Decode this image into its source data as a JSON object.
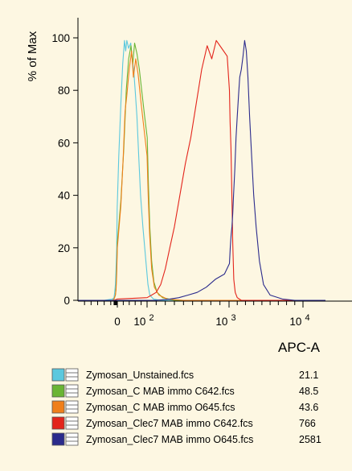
{
  "chart_data": {
    "type": "line",
    "ylabel": "% of Max",
    "xlabel": "APC-A",
    "ylim": [
      0,
      105
    ],
    "y_ticks": [
      0,
      20,
      40,
      60,
      80,
      100
    ],
    "x_ticks": [
      {
        "label": "0",
        "exp": ""
      },
      {
        "label": "10",
        "exp": "2"
      },
      {
        "label": "10",
        "exp": "3"
      },
      {
        "label": "10",
        "exp": "4"
      }
    ],
    "x_ticks_values": [
      0,
      100,
      1000,
      10000
    ],
    "x_scale": "logicle (biexponential)",
    "grid": false,
    "legend_position": "bottom",
    "series": [
      {
        "name": "Zymosan_Unstained.fcs",
        "median": "21.1",
        "color": "#5bc8de",
        "points": [
          [
            -1200,
            0
          ],
          [
            -400,
            0
          ],
          [
            -150,
            0.5
          ],
          [
            -100,
            1
          ],
          [
            -80,
            3
          ],
          [
            -60,
            6
          ],
          [
            -40,
            12
          ],
          [
            -20,
            20
          ],
          [
            -5,
            35
          ],
          [
            5,
            55
          ],
          [
            12,
            75
          ],
          [
            18,
            90
          ],
          [
            24,
            99
          ],
          [
            28,
            95
          ],
          [
            32,
            99
          ],
          [
            38,
            96
          ],
          [
            45,
            98
          ],
          [
            50,
            92
          ],
          [
            55,
            88
          ],
          [
            60,
            80
          ],
          [
            66,
            70
          ],
          [
            72,
            55
          ],
          [
            78,
            40
          ],
          [
            86,
            28
          ],
          [
            96,
            15
          ],
          [
            110,
            6
          ],
          [
            130,
            2
          ],
          [
            170,
            0.5
          ],
          [
            250,
            0
          ],
          [
            20000,
            0
          ]
        ]
      },
      {
        "name": "Zymosan_C MAB immo C642.fcs",
        "median": "48.5",
        "color": "#6ab534",
        "points": [
          [
            -1200,
            0
          ],
          [
            -150,
            0
          ],
          [
            -100,
            0.5
          ],
          [
            -60,
            2
          ],
          [
            -40,
            5
          ],
          [
            -20,
            12
          ],
          [
            0,
            22
          ],
          [
            12,
            38
          ],
          [
            22,
            58
          ],
          [
            30,
            80
          ],
          [
            38,
            92
          ],
          [
            46,
            97
          ],
          [
            52,
            90
          ],
          [
            58,
            98
          ],
          [
            66,
            94
          ],
          [
            74,
            88
          ],
          [
            82,
            80
          ],
          [
            92,
            70
          ],
          [
            102,
            62
          ],
          [
            114,
            45
          ],
          [
            130,
            28
          ],
          [
            150,
            15
          ],
          [
            175,
            7
          ],
          [
            210,
            3
          ],
          [
            270,
            1
          ],
          [
            400,
            0
          ],
          [
            20000,
            0
          ]
        ]
      },
      {
        "name": "Zymosan_C MAB immo O645.fcs",
        "median": "43.6",
        "color": "#f07f1a",
        "points": [
          [
            -1200,
            0
          ],
          [
            -150,
            0
          ],
          [
            -100,
            0.5
          ],
          [
            -60,
            2
          ],
          [
            -40,
            4
          ],
          [
            -20,
            10
          ],
          [
            0,
            20
          ],
          [
            12,
            36
          ],
          [
            20,
            55
          ],
          [
            26,
            72
          ],
          [
            32,
            78
          ],
          [
            40,
            88
          ],
          [
            48,
            95
          ],
          [
            54,
            85
          ],
          [
            62,
            92
          ],
          [
            70,
            86
          ],
          [
            80,
            75
          ],
          [
            90,
            65
          ],
          [
            100,
            55
          ],
          [
            112,
            40
          ],
          [
            128,
            25
          ],
          [
            150,
            12
          ],
          [
            180,
            5
          ],
          [
            230,
            2
          ],
          [
            320,
            0.5
          ],
          [
            500,
            0
          ],
          [
            20000,
            0
          ]
        ]
      },
      {
        "name": "Zymosan_Clec7 MAB immo C642.fcs",
        "median": "766",
        "color": "#e3241b",
        "points": [
          [
            -1200,
            0
          ],
          [
            -100,
            0
          ],
          [
            0,
            0.5
          ],
          [
            100,
            1
          ],
          [
            150,
            2
          ],
          [
            200,
            3
          ],
          [
            250,
            6
          ],
          [
            300,
            12
          ],
          [
            350,
            20
          ],
          [
            400,
            28
          ],
          [
            460,
            40
          ],
          [
            520,
            52
          ],
          [
            580,
            62
          ],
          [
            640,
            75
          ],
          [
            700,
            88
          ],
          [
            760,
            97
          ],
          [
            810,
            92
          ],
          [
            860,
            99
          ],
          [
            920,
            96
          ],
          [
            980,
            93
          ],
          [
            1050,
            80
          ],
          [
            1130,
            68
          ],
          [
            1230,
            58
          ],
          [
            1330,
            42
          ],
          [
            1450,
            22
          ],
          [
            1580,
            8
          ],
          [
            1750,
            3
          ],
          [
            2000,
            1
          ],
          [
            2500,
            0
          ],
          [
            20000,
            0
          ]
        ]
      },
      {
        "name": "Zymosan_Clec7 MAB immo O645.fcs",
        "median": "2581",
        "color": "#2b2b8c",
        "points": [
          [
            -1200,
            0
          ],
          [
            200,
            0
          ],
          [
            350,
            0.5
          ],
          [
            450,
            1
          ],
          [
            550,
            2
          ],
          [
            650,
            3
          ],
          [
            750,
            5
          ],
          [
            850,
            8
          ],
          [
            950,
            10
          ],
          [
            1050,
            14
          ],
          [
            1150,
            20
          ],
          [
            1250,
            25
          ],
          [
            1350,
            28
          ],
          [
            1450,
            33
          ],
          [
            1550,
            40
          ],
          [
            1700,
            50
          ],
          [
            1850,
            62
          ],
          [
            2000,
            70
          ],
          [
            2150,
            78
          ],
          [
            2300,
            85
          ],
          [
            2500,
            88
          ],
          [
            2700,
            93
          ],
          [
            2900,
            99
          ],
          [
            3100,
            95
          ],
          [
            3300,
            85
          ],
          [
            3500,
            70
          ],
          [
            3750,
            55
          ],
          [
            4000,
            40
          ],
          [
            4300,
            28
          ],
          [
            4700,
            15
          ],
          [
            5200,
            6
          ],
          [
            6000,
            2
          ],
          [
            7500,
            0.5
          ],
          [
            9000,
            0
          ],
          [
            20000,
            0
          ]
        ]
      }
    ]
  }
}
